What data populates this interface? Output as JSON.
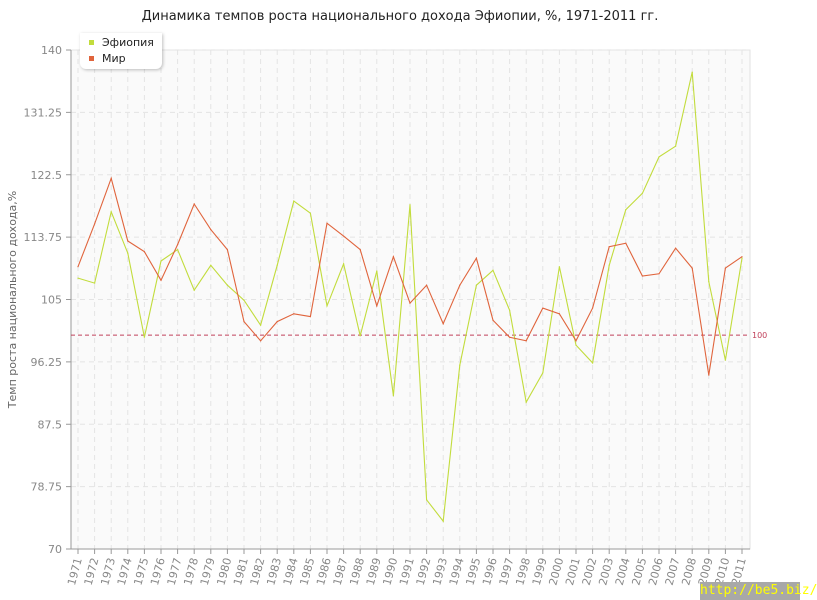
{
  "chart_data": {
    "type": "line",
    "title": "Динамика темпов роста национального дохода Эфиопии, %, 1971-2011 гг.",
    "xlabel": "",
    "ylabel": "Темп роста национального дохода,%",
    "ylim": [
      70,
      140
    ],
    "yticks": [
      "70",
      "78.75",
      "87.5",
      "96.25",
      "105",
      "113.75",
      "122.5",
      "131.25",
      "140"
    ],
    "grid": true,
    "legend_position": "top-left",
    "reference_line": {
      "value": 100,
      "label": "100",
      "color": "#c0405a"
    },
    "x": [
      "1971",
      "1972",
      "1973",
      "1974",
      "1975",
      "1976",
      "1977",
      "1978",
      "1979",
      "1980",
      "1981",
      "1982",
      "1983",
      "1984",
      "1985",
      "1986",
      "1987",
      "1988",
      "1989",
      "1990",
      "1991",
      "1992",
      "1993",
      "1994",
      "1995",
      "1996",
      "1997",
      "1998",
      "1999",
      "2000",
      "2001",
      "2002",
      "2003",
      "2004",
      "2005",
      "2006",
      "2007",
      "2008",
      "2009",
      "2010",
      "2011"
    ],
    "series": [
      {
        "name": "Эфиопия",
        "color": "#c2dc3c",
        "values": [
          108.0,
          107.3,
          117.3,
          111.5,
          99.7,
          110.4,
          112.0,
          106.3,
          109.8,
          107.0,
          104.9,
          101.4,
          109.8,
          118.8,
          117.1,
          104.1,
          110.0,
          99.9,
          109.0,
          91.5,
          118.3,
          76.9,
          73.9,
          95.8,
          107.0,
          109.1,
          103.5,
          90.6,
          94.7,
          109.6,
          98.6,
          96.1,
          109.8,
          117.6,
          119.9,
          125.0,
          126.5,
          136.9,
          107.5,
          96.5,
          110.8
        ]
      },
      {
        "name": "Мир",
        "color": "#e0643c",
        "values": [
          109.6,
          115.6,
          122.0,
          113.2,
          111.7,
          107.7,
          112.7,
          118.4,
          114.8,
          112.0,
          101.9,
          99.2,
          101.9,
          103.0,
          102.6,
          115.7,
          113.9,
          112.0,
          104.1,
          111.0,
          104.5,
          107.0,
          101.6,
          107.0,
          110.8,
          102.1,
          99.7,
          99.2,
          103.8,
          103.0,
          99.2,
          103.8,
          112.4,
          112.9,
          108.3,
          108.6,
          112.2,
          109.4,
          94.4,
          109.4,
          111.0
        ]
      }
    ]
  },
  "watermark": "http://be5.biz/"
}
